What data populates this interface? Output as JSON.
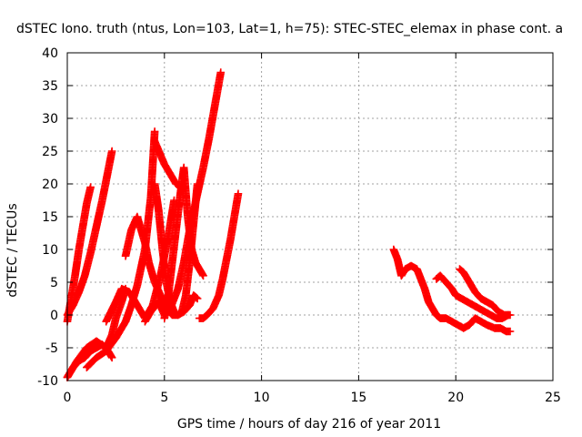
{
  "chart_data": {
    "type": "scatter",
    "title": "dSTEC Iono. truth (ntus, Lon=103, Lat=1, h=75): STEC-STEC_elemax in phase cont. a",
    "xlabel": "GPS time / hours of day 216 of year 2011",
    "ylabel": "dSTEC  / TECUs",
    "xlim": [
      0,
      25
    ],
    "ylim": [
      -10,
      40
    ],
    "xticks": [
      "0",
      "5",
      "10",
      "15",
      "20",
      "25"
    ],
    "yticks": [
      "-10",
      "-5",
      "0",
      "5",
      "10",
      "15",
      "20",
      "25",
      "30",
      "35",
      "40"
    ],
    "grid": true,
    "color": "#ff0000",
    "marker": "plus",
    "series": [
      {
        "x": [
          0.0,
          0.3,
          0.6,
          0.9,
          1.2,
          1.5,
          1.8,
          2.1,
          2.3
        ],
        "y": [
          -9.5,
          -8.0,
          -7.0,
          -6.5,
          -5.5,
          -5.0,
          -4.5,
          -5.5,
          -6.5
        ]
      },
      {
        "x": [
          0.0,
          0.2,
          0.4,
          0.6,
          0.8,
          1.0,
          1.2
        ],
        "y": [
          -1.0,
          2.5,
          6.0,
          10.0,
          13.5,
          17.0,
          19.5
        ]
      },
      {
        "x": [
          0.0,
          0.3,
          0.6,
          0.9,
          1.2,
          1.5,
          1.8,
          2.1,
          2.3
        ],
        "y": [
          0.0,
          1.5,
          3.5,
          6.0,
          9.5,
          13.5,
          17.5,
          22.0,
          25.0
        ]
      },
      {
        "x": [
          0.0,
          0.5,
          1.0,
          1.5,
          2.0,
          2.3,
          2.5,
          2.8,
          3.0
        ],
        "y": [
          -9.5,
          -7.0,
          -5.0,
          -4.0,
          -5.0,
          -3.0,
          -0.5,
          2.0,
          4.0
        ]
      },
      {
        "x": [
          1.0,
          1.5,
          2.0,
          2.5,
          3.0,
          3.3,
          3.6,
          4.0,
          4.3,
          4.5
        ],
        "y": [
          -8.0,
          -6.5,
          -5.5,
          -3.5,
          -1.0,
          1.5,
          4.5,
          10.0,
          18.0,
          28.0
        ]
      },
      {
        "x": [
          2.0,
          2.5,
          2.8,
          3.2,
          3.6,
          4.0,
          4.4,
          4.8,
          5.2,
          5.5
        ],
        "y": [
          -1.0,
          2.0,
          4.0,
          3.5,
          1.5,
          -0.5,
          1.5,
          6.0,
          12.0,
          17.5
        ]
      },
      {
        "x": [
          3.0,
          3.3,
          3.6,
          3.8,
          4.0,
          4.2,
          4.5,
          4.8,
          5.1,
          5.4,
          5.7,
          6.0,
          6.3,
          6.5,
          6.7
        ],
        "y": [
          9.0,
          13.0,
          15.0,
          13.0,
          11.0,
          8.0,
          5.0,
          3.0,
          1.0,
          0.0,
          0.0,
          0.5,
          1.5,
          3.0,
          2.5
        ]
      },
      {
        "x": [
          4.0,
          4.3,
          4.7,
          5.0,
          5.3,
          5.7,
          6.0,
          6.3,
          6.7,
          7.0,
          7.3,
          7.6,
          7.9
        ],
        "y": [
          -1.0,
          0.5,
          2.0,
          0.0,
          1.0,
          4.0,
          8.0,
          13.0,
          18.5,
          22.5,
          27.0,
          32.0,
          37.0
        ]
      },
      {
        "x": [
          4.5,
          4.7,
          4.9,
          5.1,
          5.3,
          5.5,
          5.7,
          5.9,
          6.1,
          6.3,
          6.5,
          6.7
        ],
        "y": [
          20.0,
          16.0,
          10.0,
          5.0,
          2.0,
          0.5,
          0.0,
          0.5,
          3.0,
          8.0,
          14.0,
          20.0
        ]
      },
      {
        "x": [
          5.0,
          5.2,
          5.4,
          5.6,
          5.8,
          6.0,
          6.2,
          6.4,
          6.6,
          6.8,
          7.0
        ],
        "y": [
          -0.5,
          3.0,
          8.0,
          13.0,
          18.0,
          22.5,
          15.0,
          10.0,
          8.0,
          7.0,
          6.0
        ]
      },
      {
        "x": [
          6.8,
          7.0,
          7.2,
          7.5,
          7.8,
          8.0,
          8.2,
          8.4,
          8.6,
          8.8
        ],
        "y": [
          -0.5,
          -0.5,
          0.0,
          1.0,
          3.0,
          5.5,
          8.5,
          11.5,
          15.0,
          18.5
        ]
      },
      {
        "x": [
          4.5,
          5.0,
          5.3,
          5.6,
          5.9
        ],
        "y": [
          26.5,
          23.0,
          21.5,
          20.0,
          19.5
        ]
      },
      {
        "x": [
          16.8,
          17.0,
          17.2,
          17.4,
          17.7,
          18.0,
          18.2,
          18.4,
          18.6,
          18.8,
          19.0,
          19.2,
          19.5,
          19.8,
          20.1,
          20.4,
          20.7,
          21.0,
          21.3,
          21.6,
          22.0,
          22.3,
          22.6,
          22.8
        ],
        "y": [
          10.0,
          8.5,
          6.0,
          7.0,
          7.5,
          7.0,
          5.5,
          4.0,
          2.0,
          1.0,
          0.0,
          -0.5,
          -0.5,
          -1.0,
          -1.5,
          -2.0,
          -1.5,
          -0.5,
          -1.0,
          -1.5,
          -2.0,
          -2.0,
          -2.5,
          -2.5
        ]
      },
      {
        "x": [
          19.0,
          19.2,
          19.5,
          19.8,
          20.0,
          20.3,
          20.6,
          20.9,
          21.2,
          21.5,
          21.8,
          22.1,
          22.4,
          22.7
        ],
        "y": [
          5.5,
          6.0,
          5.0,
          4.0,
          3.0,
          2.5,
          2.0,
          1.5,
          1.0,
          0.5,
          0.0,
          -0.5,
          -0.5,
          0.0
        ]
      },
      {
        "x": [
          20.2,
          20.4,
          20.7,
          21.0,
          21.3,
          21.6,
          21.9,
          22.2,
          22.5,
          22.8
        ],
        "y": [
          7.0,
          6.5,
          5.0,
          3.5,
          2.5,
          2.0,
          1.5,
          0.5,
          0.0,
          0.0
        ]
      }
    ]
  }
}
